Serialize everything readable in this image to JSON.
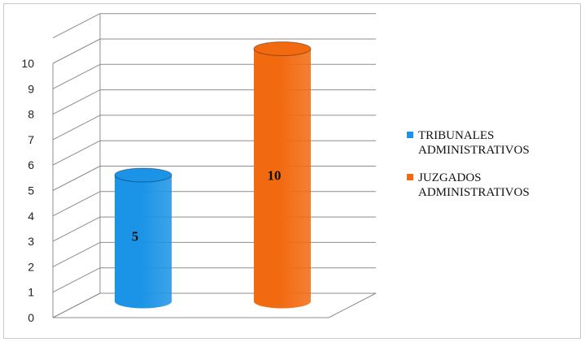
{
  "chart_data": {
    "type": "bar",
    "categories": [
      "TRIBUNALES ADMINISTRATIVOS",
      "JUZGADOS ADMINISTRATIVOS"
    ],
    "values": [
      5,
      10
    ],
    "title": "",
    "xlabel": "",
    "ylabel": "",
    "ylim": [
      0,
      10
    ],
    "ytick_labels": [
      "0",
      "1",
      "2",
      "3",
      "4",
      "5",
      "6",
      "7",
      "8",
      "9",
      "10"
    ],
    "data_labels": [
      "5",
      "10"
    ],
    "grid": true,
    "legend_position": "right",
    "series": [
      {
        "name": "TRIBUNALES ADMINISTRATIVOS",
        "value": 5,
        "color": "#1b93e6",
        "legend_lines": [
          "TRIBUNALES",
          "ADMINISTRATIVOS"
        ]
      },
      {
        "name": "JUZGADOS ADMINISTRATIVOS",
        "value": 10,
        "color": "#f26a10",
        "legend_lines": [
          "JUZGADOS",
          "ADMINISTRATIVOS"
        ]
      }
    ],
    "bar_shape": "cylinder-3d"
  }
}
